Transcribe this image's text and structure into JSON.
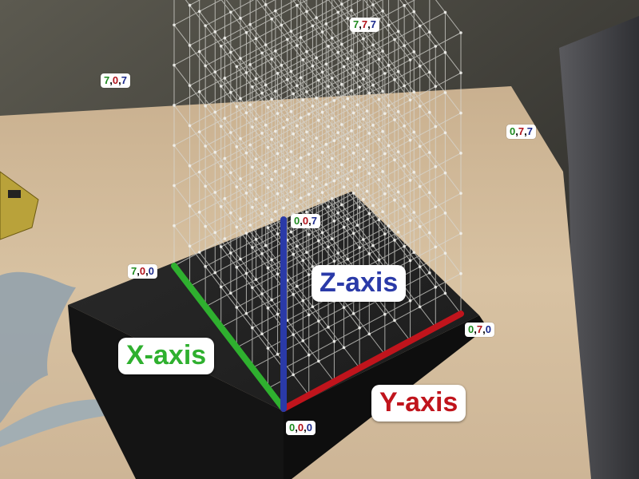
{
  "colors": {
    "x_axis": "#2fb02f",
    "y_axis": "#c0141c",
    "z_axis": "#2a3aa8",
    "coord_x": "#1f8a1f",
    "coord_y": "#b0121a",
    "coord_z": "#1c2a8c"
  },
  "axes": {
    "x_label": "X-axis",
    "y_label": "Y-axis",
    "z_label": "Z-axis"
  },
  "coordinates": {
    "c777": {
      "x": "7",
      "y": "7",
      "z": "7"
    },
    "c707": {
      "x": "7",
      "y": "0",
      "z": "7"
    },
    "c077": {
      "x": "0",
      "y": "7",
      "z": "7"
    },
    "c007": {
      "x": "0",
      "y": "0",
      "z": "7"
    },
    "c700": {
      "x": "7",
      "y": "0",
      "z": "0"
    },
    "c070": {
      "x": "0",
      "y": "7",
      "z": "0"
    },
    "c000": {
      "x": "0",
      "y": "0",
      "z": "0"
    }
  },
  "separator": ","
}
